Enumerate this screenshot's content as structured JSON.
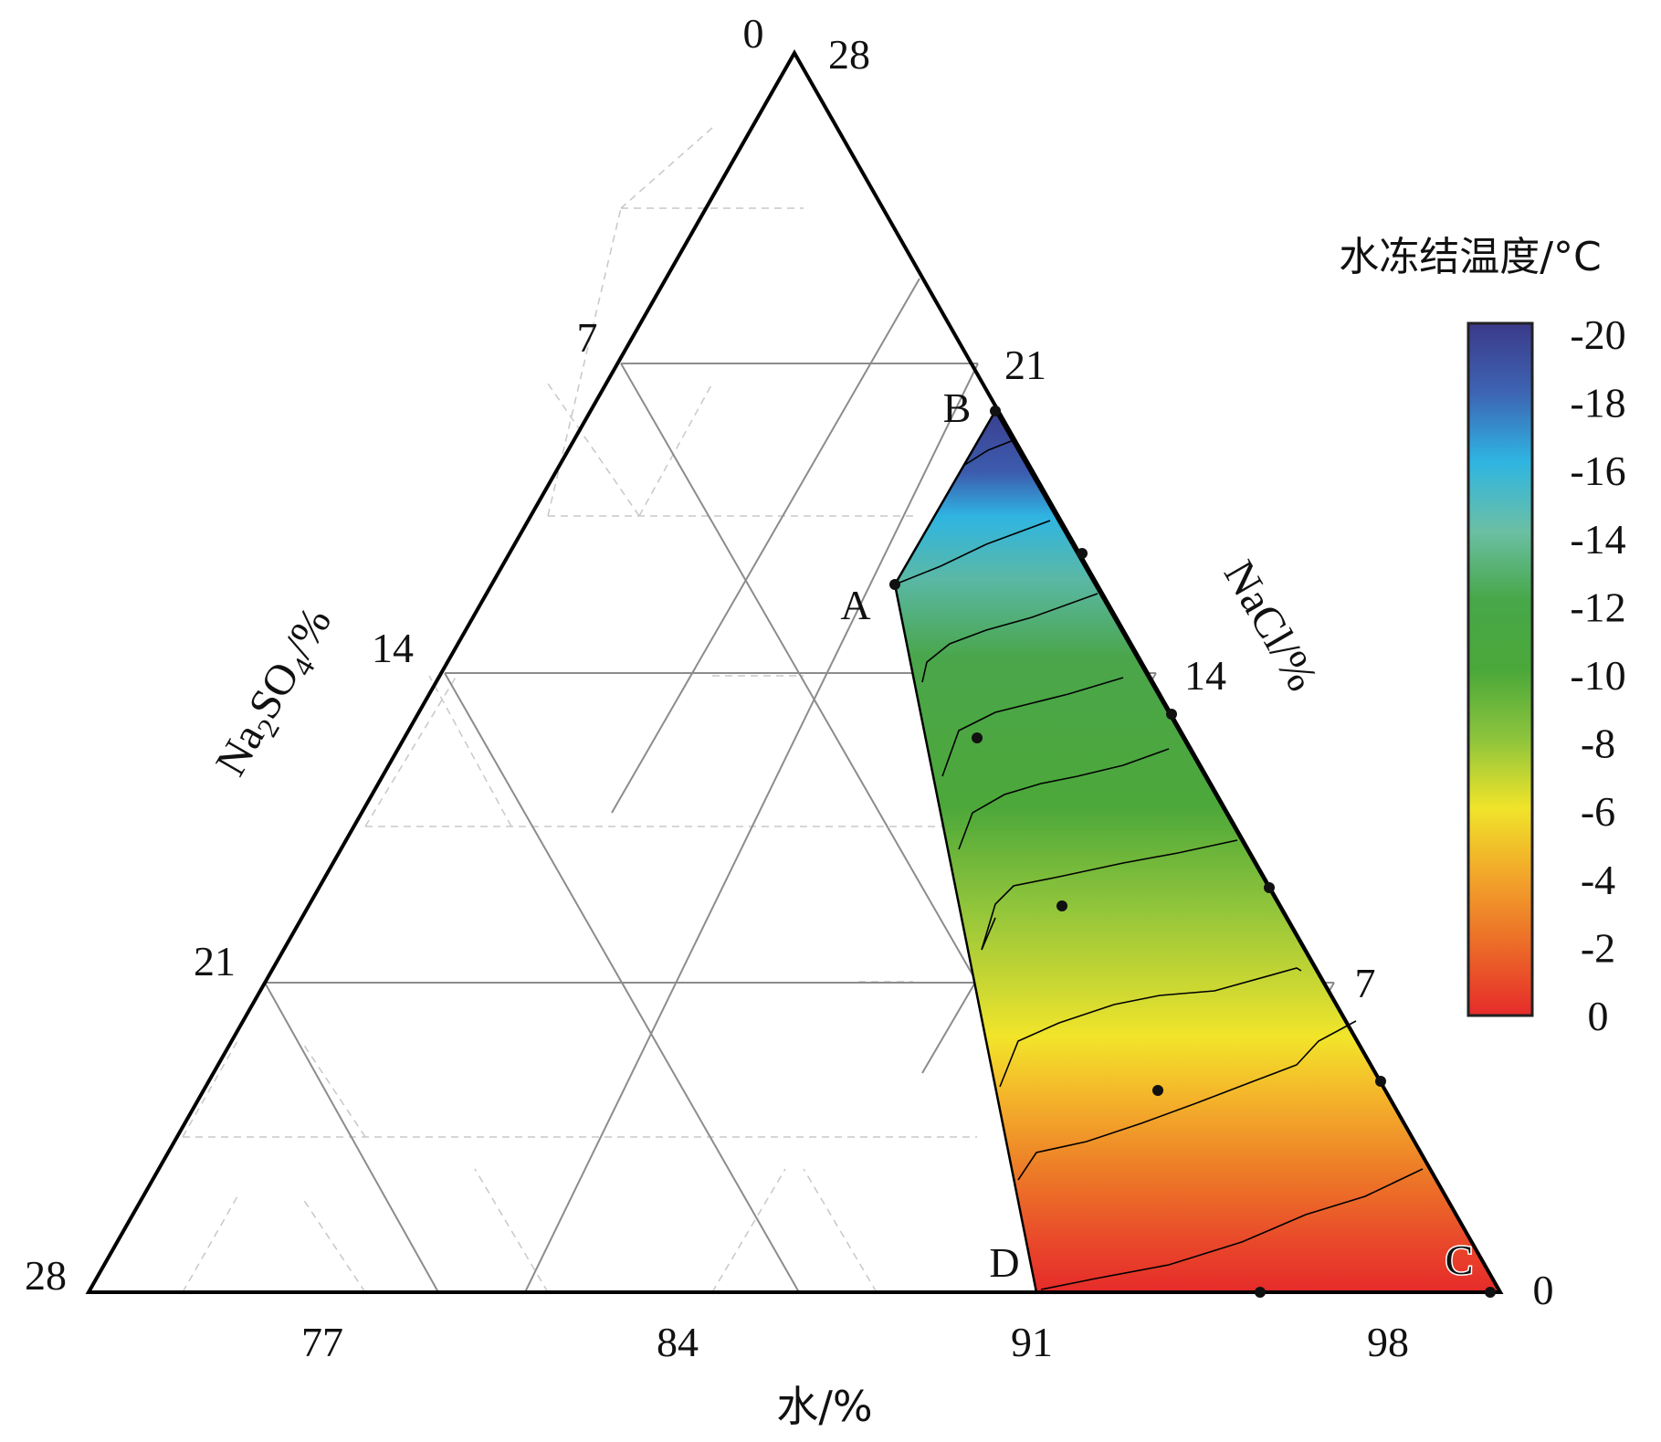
{
  "chart_data": {
    "type": "ternary-contour",
    "axes": {
      "bottom": {
        "label": "水/%",
        "ticks": [
          "77",
          "84",
          "91",
          "98"
        ]
      },
      "left": {
        "label_main": "Na",
        "label_sub1": "2",
        "label_mid": "SO",
        "label_sub2": "4",
        "label_tail": "/%",
        "ticks": [
          "0",
          "7",
          "14",
          "21",
          "28"
        ]
      },
      "right": {
        "label": "NaCl/%",
        "ticks": [
          "28",
          "21",
          "14",
          "7",
          "0"
        ]
      }
    },
    "region_labels": [
      "A",
      "B",
      "C",
      "D"
    ],
    "colorbar": {
      "title": "水冻结温度/°C",
      "ticks": [
        "-20",
        "-18",
        "-16",
        "-14",
        "-12",
        "-10",
        "-8",
        "-6",
        "-4",
        "-2",
        "0"
      ],
      "min": -20,
      "max": 0
    },
    "colors": {
      "grid_major": "#8c8c8c",
      "grid_minor": "#c8c8c8",
      "frame": "#000000",
      "contour": "#000000",
      "scale": [
        "#e8282a",
        "#ef7f26",
        "#f0e32a",
        "#8fc53b",
        "#4ea83a",
        "#47ab6e",
        "#2bb3dd",
        "#3d3e8f"
      ]
    }
  }
}
